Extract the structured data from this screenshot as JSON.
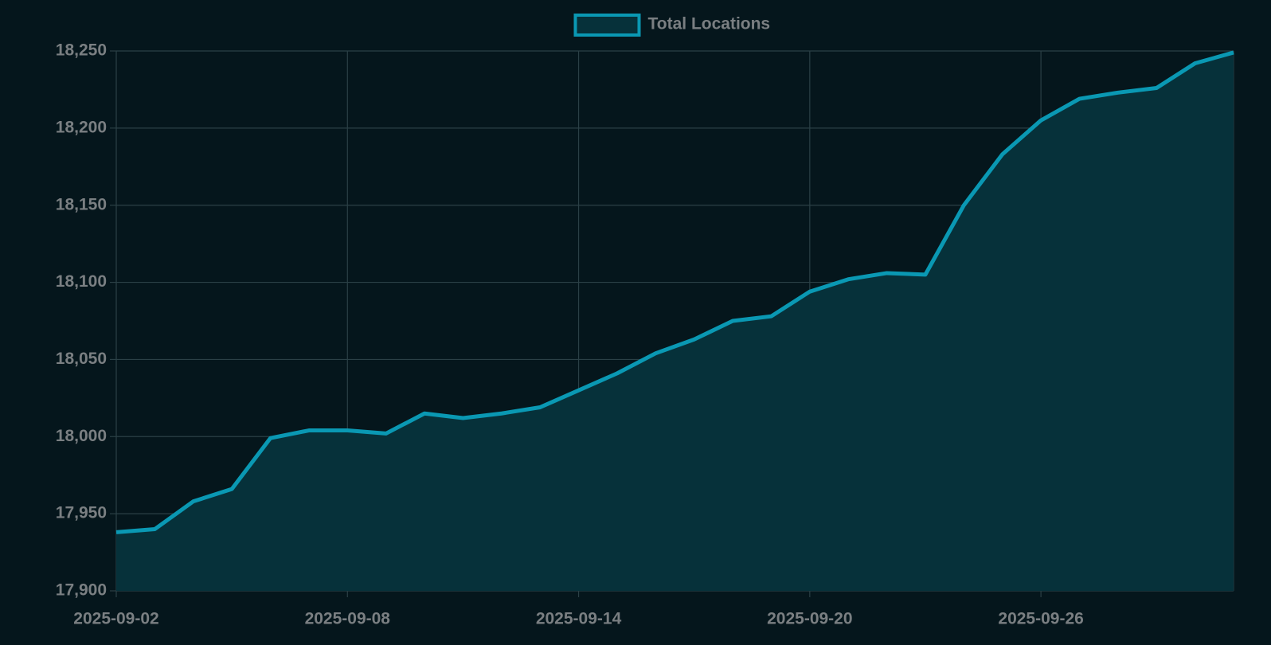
{
  "chart_data": {
    "type": "line",
    "categories": [
      "2025-09-02",
      null,
      null,
      null,
      null,
      null,
      "2025-09-08",
      null,
      null,
      null,
      null,
      null,
      "2025-09-14",
      null,
      null,
      null,
      null,
      null,
      "2025-09-20",
      null,
      null,
      null,
      null,
      null,
      "2025-09-26",
      null,
      null,
      null,
      null,
      null
    ],
    "series": [
      {
        "name": "Total Locations",
        "color": "#0a98b3",
        "fill": "#06313a",
        "values": [
          17938,
          17940,
          17958,
          17966,
          17999,
          18004,
          18004,
          18002,
          18015,
          18012,
          18015,
          18019,
          18030,
          18041,
          18054,
          18063,
          18075,
          18078,
          18094,
          18102,
          18106,
          18105,
          18150,
          18183,
          18205,
          18219,
          18223,
          18226,
          18242,
          18249
        ]
      }
    ],
    "ylim": [
      17900,
      18250
    ],
    "yticks": [
      {
        "value": 17900,
        "label": "17,900"
      },
      {
        "value": 17950,
        "label": "17,950"
      },
      {
        "value": 18000,
        "label": "18,000"
      },
      {
        "value": 18050,
        "label": "18,050"
      },
      {
        "value": 18100,
        "label": "18,100"
      },
      {
        "value": 18150,
        "label": "18,150"
      },
      {
        "value": 18200,
        "label": "18,200"
      },
      {
        "value": 18250,
        "label": "18,250"
      }
    ],
    "grid": true,
    "legend": "top"
  }
}
